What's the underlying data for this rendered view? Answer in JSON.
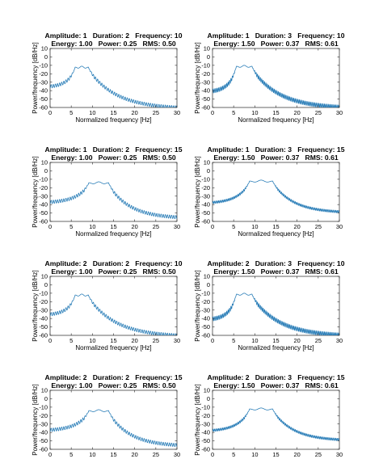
{
  "figure": {
    "line_color": "#1f77b4",
    "background": "#ffffff"
  },
  "chart_data": [
    {
      "type": "line",
      "title_line1": "Amplitude: 1   Duration: 2   Frequency: 10",
      "title_line2": "Energy: 1.00   Power: 0.25   RMS: 0.50",
      "xlabel": "Normalized frequency [Hz]",
      "ylabel": "Power/frequency [dB/Hz]",
      "xlim": [
        0,
        30
      ],
      "ylim": [
        -60,
        10
      ],
      "xticks": [
        0,
        5,
        10,
        15,
        20,
        25,
        30
      ],
      "yticks": [
        10,
        0,
        -10,
        -20,
        -30,
        -40,
        -50,
        -60
      ],
      "signal": {
        "center_hz": 7.5,
        "half_width_hz": 1.6,
        "peak_db": -12,
        "ripple_hz": 0.5,
        "ripple_db": 4,
        "rolloff_db_at_30": -58,
        "low_end_db": -33
      }
    },
    {
      "type": "line",
      "title_line1": "Amplitude: 1   Duration: 3   Frequency: 10",
      "title_line2": "Energy: 1.50   Power: 0.37   RMS: 0.61",
      "xlabel": "Normalized frequency [Hz]",
      "ylabel": "Power/frequency [dB/Hz]",
      "xlim": [
        0,
        30
      ],
      "ylim": [
        -60,
        10
      ],
      "xticks": [
        0,
        5,
        10,
        15,
        20,
        25,
        30
      ],
      "yticks": [
        10,
        0,
        -10,
        -20,
        -30,
        -40,
        -50,
        -60
      ],
      "signal": {
        "center_hz": 7.5,
        "half_width_hz": 1.9,
        "peak_db": -11,
        "ripple_hz": 0.33,
        "ripple_db": 5,
        "rolloff_db_at_30": -57,
        "low_end_db": -38
      }
    },
    {
      "type": "line",
      "title_line1": "Amplitude: 1   Duration: 2   Frequency: 15",
      "title_line2": "Energy: 1.00   Power: 0.25   RMS: 0.50",
      "xlabel": "Normalized frequency [Hz]",
      "ylabel": "Power/frequency [dB/Hz]",
      "xlim": [
        0,
        30
      ],
      "ylim": [
        -60,
        10
      ],
      "xticks": [
        0,
        5,
        10,
        15,
        20,
        25,
        30
      ],
      "yticks": [
        10,
        0,
        -10,
        -20,
        -30,
        -40,
        -50,
        -60
      ],
      "signal": {
        "center_hz": 11.5,
        "half_width_hz": 2.4,
        "peak_db": -14,
        "ripple_hz": 0.5,
        "ripple_db": 4,
        "rolloff_db_at_30": -53,
        "low_end_db": -35
      }
    },
    {
      "type": "line",
      "title_line1": "Amplitude: 1   Duration: 3   Frequency: 15",
      "title_line2": "Energy: 1.50   Power: 0.37   RMS: 0.61",
      "xlabel": "Normalized frequency [Hz]",
      "ylabel": "Power/frequency [dB/Hz]",
      "xlim": [
        0,
        30
      ],
      "ylim": [
        -60,
        10
      ],
      "xticks": [
        0,
        5,
        10,
        15,
        20,
        25,
        30
      ],
      "yticks": [
        10,
        0,
        -10,
        -20,
        -30,
        -40,
        -50,
        -60
      ],
      "signal": {
        "center_hz": 11.5,
        "half_width_hz": 2.8,
        "peak_db": -12,
        "ripple_hz": 0.33,
        "ripple_db": 3,
        "rolloff_db_at_30": -47,
        "low_end_db": -36
      }
    },
    {
      "type": "line",
      "title_line1": "Amplitude: 2   Duration: 2   Frequency: 10",
      "title_line2": "Energy: 1.00   Power: 0.25   RMS: 0.50",
      "xlabel": "Normalized frequency [Hz]",
      "ylabel": "Power/frequency [dB/Hz]",
      "xlim": [
        0,
        30
      ],
      "ylim": [
        -60,
        10
      ],
      "xticks": [
        0,
        5,
        10,
        15,
        20,
        25,
        30
      ],
      "yticks": [
        10,
        0,
        -10,
        -20,
        -30,
        -40,
        -50,
        -60
      ],
      "signal": {
        "center_hz": 7.5,
        "half_width_hz": 1.6,
        "peak_db": -12,
        "ripple_hz": 0.5,
        "ripple_db": 4,
        "rolloff_db_at_30": -58,
        "low_end_db": -33
      }
    },
    {
      "type": "line",
      "title_line1": "Amplitude: 2   Duration: 3   Frequency: 10",
      "title_line2": "Energy: 1.50   Power: 0.37   RMS: 0.61",
      "xlabel": "Normalized frequency [Hz]",
      "ylabel": "Power/frequency [dB/Hz]",
      "xlim": [
        0,
        30
      ],
      "ylim": [
        -60,
        10
      ],
      "xticks": [
        0,
        5,
        10,
        15,
        20,
        25,
        30
      ],
      "yticks": [
        10,
        0,
        -10,
        -20,
        -30,
        -40,
        -50,
        -60
      ],
      "signal": {
        "center_hz": 7.5,
        "half_width_hz": 1.9,
        "peak_db": -11,
        "ripple_hz": 0.33,
        "ripple_db": 5,
        "rolloff_db_at_30": -57,
        "low_end_db": -38
      }
    },
    {
      "type": "line",
      "title_line1": "Amplitude: 2   Duration: 2   Frequency: 15",
      "title_line2": "Energy: 1.00   Power: 0.25   RMS: 0.50",
      "xlabel": "Normalized frequency [Hz]",
      "ylabel": "Power/frequency [dB/Hz]",
      "xlim": [
        0,
        30
      ],
      "ylim": [
        -60,
        10
      ],
      "xticks": [
        0,
        5,
        10,
        15,
        20,
        25,
        30
      ],
      "yticks": [
        10,
        0,
        -10,
        -20,
        -30,
        -40,
        -50,
        -60
      ],
      "signal": {
        "center_hz": 11.5,
        "half_width_hz": 2.4,
        "peak_db": -14,
        "ripple_hz": 0.5,
        "ripple_db": 4,
        "rolloff_db_at_30": -53,
        "low_end_db": -35
      }
    },
    {
      "type": "line",
      "title_line1": "Amplitude: 2   Duration: 3   Frequency: 15",
      "title_line2": "Energy: 1.50   Power: 0.37   RMS: 0.61",
      "xlabel": "Normalized frequency [Hz]",
      "ylabel": "Power/frequency [dB/Hz]",
      "xlim": [
        0,
        30
      ],
      "ylim": [
        -60,
        10
      ],
      "xticks": [
        0,
        5,
        10,
        15,
        20,
        25,
        30
      ],
      "yticks": [
        10,
        0,
        -10,
        -20,
        -30,
        -40,
        -50,
        -60
      ],
      "signal": {
        "center_hz": 11.5,
        "half_width_hz": 2.8,
        "peak_db": -12,
        "ripple_hz": 0.33,
        "ripple_db": 3,
        "rolloff_db_at_30": -47,
        "low_end_db": -36
      }
    }
  ]
}
